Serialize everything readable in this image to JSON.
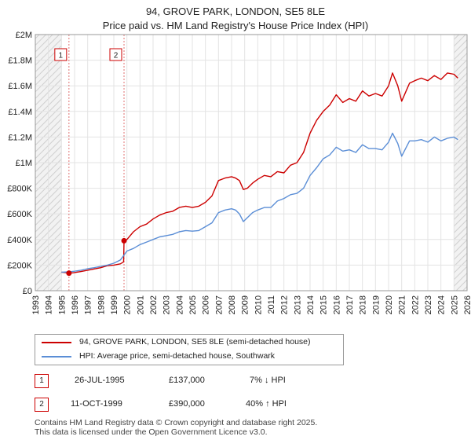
{
  "chart_data": {
    "type": "line",
    "title": "94, GROVE PARK, LONDON, SE5 8LE",
    "subtitle": "Price paid vs. HM Land Registry's House Price Index (HPI)",
    "xlim": [
      1993,
      2026
    ],
    "ylim": [
      0,
      2000000
    ],
    "x_ticks": [
      "1993",
      "1994",
      "1995",
      "1996",
      "1997",
      "1998",
      "1999",
      "2000",
      "2001",
      "2002",
      "2003",
      "2004",
      "2005",
      "2006",
      "2007",
      "2008",
      "2009",
      "2010",
      "2011",
      "2012",
      "2013",
      "2014",
      "2015",
      "2016",
      "2017",
      "2018",
      "2019",
      "2020",
      "2021",
      "2022",
      "2023",
      "2024",
      "2025",
      "2026"
    ],
    "y_ticks": [
      {
        "value": 0,
        "label": "£0"
      },
      {
        "value": 200000,
        "label": "£200K"
      },
      {
        "value": 400000,
        "label": "£400K"
      },
      {
        "value": 600000,
        "label": "£600K"
      },
      {
        "value": 800000,
        "label": "£800K"
      },
      {
        "value": 1000000,
        "label": "£1M"
      },
      {
        "value": 1200000,
        "label": "£1.2M"
      },
      {
        "value": 1400000,
        "label": "£1.4M"
      },
      {
        "value": 1600000,
        "label": "£1.6M"
      },
      {
        "value": 1800000,
        "label": "£1.8M"
      },
      {
        "value": 2000000,
        "label": "£2M"
      }
    ],
    "grid": true,
    "hatched_ranges": [
      [
        1993,
        1995.0
      ],
      [
        2025.0,
        2026
      ]
    ],
    "sale_markers": [
      {
        "label": "1",
        "x": 1995.57,
        "y": 137000
      },
      {
        "label": "2",
        "x": 1999.78,
        "y": 390000
      }
    ],
    "series": [
      {
        "name": "94, GROVE PARK, LONDON, SE5 8LE (semi-detached house)",
        "color": "#cc0000",
        "x": [
          1995.0,
          1995.3,
          1995.57,
          1995.9,
          1996.5,
          1997.0,
          1997.5,
          1998.0,
          1998.5,
          1999.0,
          1999.5,
          1999.75,
          1999.78,
          2000.0,
          2000.5,
          2001.0,
          2001.5,
          2002.0,
          2002.5,
          2003.0,
          2003.5,
          2004.0,
          2004.5,
          2005.0,
          2005.5,
          2006.0,
          2006.5,
          2007.0,
          2007.5,
          2008.0,
          2008.3,
          2008.6,
          2008.9,
          2009.2,
          2009.6,
          2010.0,
          2010.5,
          2011.0,
          2011.5,
          2012.0,
          2012.5,
          2013.0,
          2013.5,
          2014.0,
          2014.5,
          2015.0,
          2015.5,
          2016.0,
          2016.5,
          2017.0,
          2017.5,
          2018.0,
          2018.5,
          2019.0,
          2019.5,
          2020.0,
          2020.3,
          2020.7,
          2021.0,
          2021.3,
          2021.6,
          2022.0,
          2022.5,
          2023.0,
          2023.5,
          2024.0,
          2024.5,
          2025.0,
          2025.3
        ],
        "values": [
          145000,
          142000,
          137000,
          140000,
          150000,
          160000,
          170000,
          180000,
          195000,
          200000,
          210000,
          225000,
          390000,
          400000,
          460000,
          500000,
          520000,
          560000,
          590000,
          610000,
          620000,
          650000,
          660000,
          650000,
          660000,
          690000,
          740000,
          860000,
          880000,
          890000,
          880000,
          860000,
          790000,
          800000,
          840000,
          870000,
          900000,
          890000,
          930000,
          920000,
          980000,
          1000000,
          1080000,
          1230000,
          1330000,
          1400000,
          1450000,
          1530000,
          1470000,
          1500000,
          1480000,
          1560000,
          1520000,
          1540000,
          1520000,
          1600000,
          1700000,
          1600000,
          1480000,
          1550000,
          1620000,
          1640000,
          1660000,
          1640000,
          1680000,
          1650000,
          1700000,
          1690000,
          1660000
        ]
      },
      {
        "name": "HPI: Average price, semi-detached house, Southwark",
        "color": "#5b8ed6",
        "x": [
          1995.0,
          1995.57,
          1996.0,
          1996.5,
          1997.0,
          1997.5,
          1998.0,
          1998.5,
          1999.0,
          1999.5,
          1999.78,
          2000.0,
          2000.5,
          2001.0,
          2001.5,
          2002.0,
          2002.5,
          2003.0,
          2003.5,
          2004.0,
          2004.5,
          2005.0,
          2005.5,
          2006.0,
          2006.5,
          2007.0,
          2007.5,
          2008.0,
          2008.3,
          2008.6,
          2008.9,
          2009.2,
          2009.6,
          2010.0,
          2010.5,
          2011.0,
          2011.5,
          2012.0,
          2012.5,
          2013.0,
          2013.5,
          2014.0,
          2014.5,
          2015.0,
          2015.5,
          2016.0,
          2016.5,
          2017.0,
          2017.5,
          2018.0,
          2018.5,
          2019.0,
          2019.5,
          2020.0,
          2020.3,
          2020.7,
          2021.0,
          2021.3,
          2021.6,
          2022.0,
          2022.5,
          2023.0,
          2023.5,
          2024.0,
          2024.5,
          2025.0,
          2025.3
        ],
        "values": [
          145000,
          147000,
          152000,
          160000,
          172000,
          180000,
          190000,
          200000,
          215000,
          240000,
          278000,
          310000,
          330000,
          360000,
          380000,
          400000,
          420000,
          430000,
          440000,
          460000,
          470000,
          465000,
          470000,
          500000,
          530000,
          610000,
          630000,
          640000,
          630000,
          600000,
          540000,
          570000,
          610000,
          630000,
          650000,
          650000,
          700000,
          720000,
          750000,
          760000,
          800000,
          900000,
          960000,
          1030000,
          1060000,
          1120000,
          1090000,
          1100000,
          1080000,
          1140000,
          1110000,
          1110000,
          1100000,
          1160000,
          1230000,
          1150000,
          1050000,
          1110000,
          1170000,
          1170000,
          1180000,
          1160000,
          1200000,
          1170000,
          1190000,
          1200000,
          1180000
        ]
      }
    ]
  },
  "legend": {
    "items": [
      {
        "label": "94, GROVE PARK, LONDON, SE5 8LE (semi-detached house)",
        "color": "#cc0000"
      },
      {
        "label": "HPI: Average price, semi-detached house, Southwark",
        "color": "#5b8ed6"
      }
    ]
  },
  "transactions": [
    {
      "num": "1",
      "date": "26-JUL-1995",
      "price": "£137,000",
      "hpi": "7% ↓ HPI"
    },
    {
      "num": "2",
      "date": "11-OCT-1999",
      "price": "£390,000",
      "hpi": "40% ↑ HPI"
    }
  ],
  "footer": {
    "line1": "Contains HM Land Registry data © Crown copyright and database right 2025.",
    "line2": "This data is licensed under the Open Government Licence v3.0."
  }
}
